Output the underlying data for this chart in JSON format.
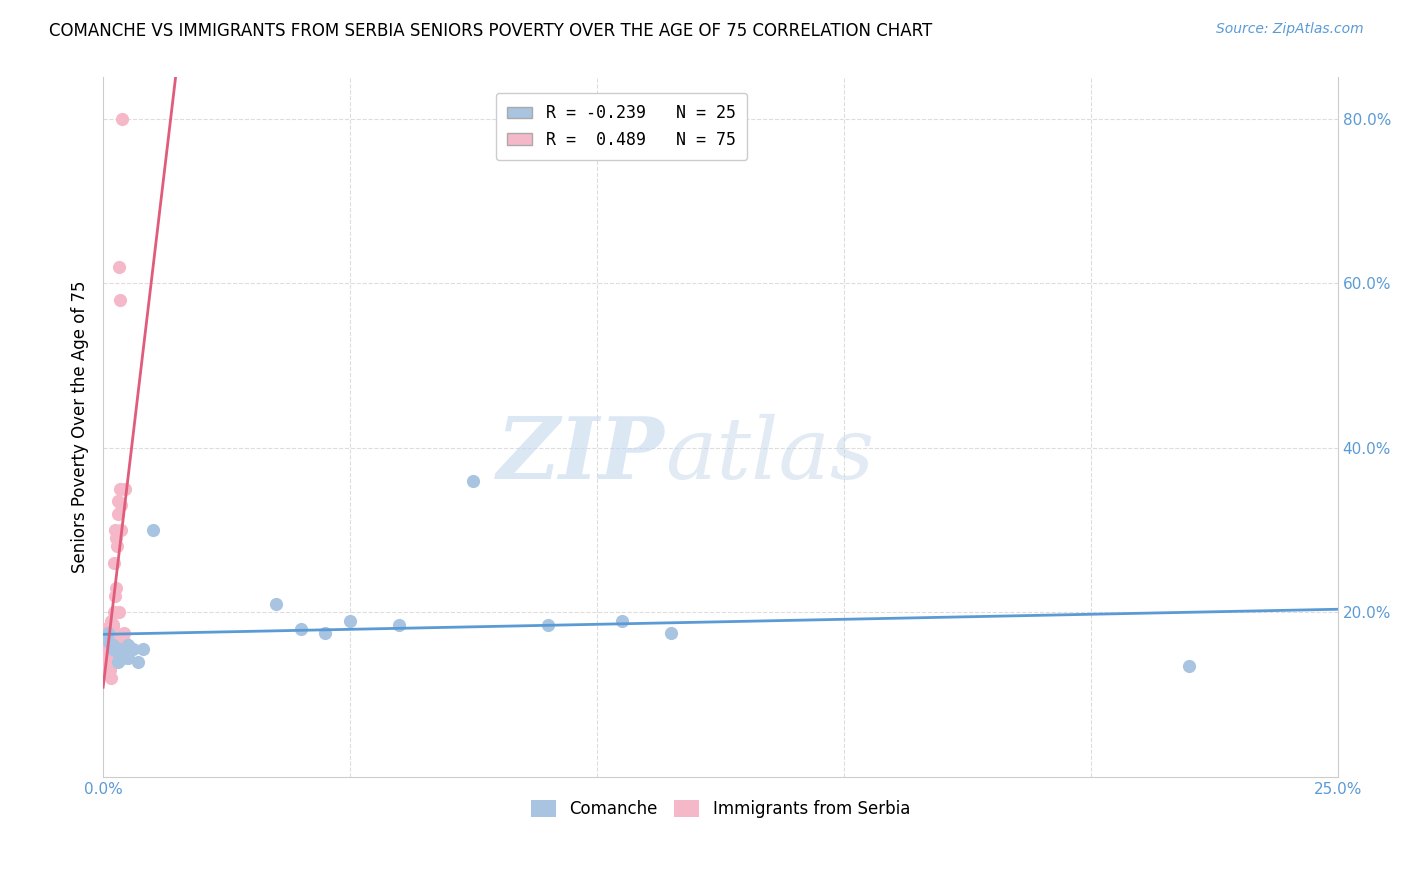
{
  "title": "COMANCHE VS IMMIGRANTS FROM SERBIA SENIORS POVERTY OVER THE AGE OF 75 CORRELATION CHART",
  "source": "Source: ZipAtlas.com",
  "ylabel": "Seniors Poverty Over the Age of 75",
  "xlim": [
    0.0,
    0.25
  ],
  "ylim": [
    0.0,
    0.85
  ],
  "xticks": [
    0.0,
    0.05,
    0.1,
    0.15,
    0.2,
    0.25
  ],
  "xticklabels": [
    "0.0%",
    "",
    "",
    "",
    "",
    "25.0%"
  ],
  "yticks_right": [
    0.0,
    0.2,
    0.4,
    0.6,
    0.8
  ],
  "yticklabels_right": [
    "",
    "20.0%",
    "40.0%",
    "60.0%",
    "80.0%"
  ],
  "legend_label1": "R = -0.239   N = 25",
  "legend_label2": "R =  0.489   N = 75",
  "legend_color1": "#a8c4e0",
  "legend_color2": "#f4b8c8",
  "scatter1_color": "#a8c4e0",
  "scatter2_color": "#f4b8c8",
  "line1_color": "#5b9bd5",
  "line2_color": "#e05c7a",
  "comanche_x": [
    0.001,
    0.001,
    0.002,
    0.002,
    0.003,
    0.003,
    0.003,
    0.004,
    0.004,
    0.005,
    0.005,
    0.006,
    0.007,
    0.008,
    0.01,
    0.035,
    0.04,
    0.045,
    0.05,
    0.06,
    0.075,
    0.09,
    0.105,
    0.115,
    0.22
  ],
  "comanche_y": [
    0.175,
    0.165,
    0.16,
    0.155,
    0.155,
    0.15,
    0.14,
    0.145,
    0.155,
    0.16,
    0.145,
    0.155,
    0.14,
    0.155,
    0.3,
    0.21,
    0.18,
    0.175,
    0.19,
    0.185,
    0.36,
    0.185,
    0.19,
    0.175,
    0.135
  ],
  "serbia_x": [
    0.0002,
    0.0002,
    0.0003,
    0.0003,
    0.0003,
    0.0004,
    0.0004,
    0.0004,
    0.0005,
    0.0005,
    0.0005,
    0.0006,
    0.0006,
    0.0006,
    0.0007,
    0.0007,
    0.0007,
    0.0008,
    0.0008,
    0.0008,
    0.0009,
    0.0009,
    0.001,
    0.001,
    0.001,
    0.0011,
    0.0011,
    0.0012,
    0.0012,
    0.0013,
    0.0013,
    0.0014,
    0.0014,
    0.0015,
    0.0015,
    0.0015,
    0.0016,
    0.0016,
    0.0017,
    0.0017,
    0.0018,
    0.0018,
    0.0019,
    0.0019,
    0.002,
    0.002,
    0.0021,
    0.0021,
    0.0022,
    0.0022,
    0.0023,
    0.0023,
    0.0024,
    0.0024,
    0.0025,
    0.0025,
    0.0026,
    0.0026,
    0.0027,
    0.0028,
    0.0029,
    0.003,
    0.003,
    0.0032,
    0.0033,
    0.0034,
    0.0035,
    0.0036,
    0.0037,
    0.0038,
    0.004,
    0.0042,
    0.0043,
    0.0044,
    0.0045
  ],
  "serbia_y": [
    0.17,
    0.155,
    0.16,
    0.14,
    0.18,
    0.155,
    0.145,
    0.17,
    0.155,
    0.14,
    0.175,
    0.155,
    0.16,
    0.17,
    0.155,
    0.145,
    0.16,
    0.145,
    0.14,
    0.155,
    0.155,
    0.17,
    0.145,
    0.15,
    0.17,
    0.14,
    0.145,
    0.155,
    0.145,
    0.13,
    0.17,
    0.145,
    0.155,
    0.12,
    0.14,
    0.19,
    0.155,
    0.16,
    0.165,
    0.155,
    0.145,
    0.155,
    0.14,
    0.185,
    0.155,
    0.16,
    0.145,
    0.185,
    0.155,
    0.2,
    0.175,
    0.26,
    0.155,
    0.22,
    0.175,
    0.3,
    0.155,
    0.29,
    0.23,
    0.28,
    0.155,
    0.335,
    0.32,
    0.2,
    0.62,
    0.58,
    0.35,
    0.3,
    0.33,
    0.8,
    0.155,
    0.165,
    0.175,
    0.155,
    0.35
  ],
  "line1_x_start": 0.0,
  "line1_x_end": 0.25,
  "line2_x_start": 0.0,
  "line2_x_end": 0.025,
  "line2_dashed_x_end": 0.046
}
